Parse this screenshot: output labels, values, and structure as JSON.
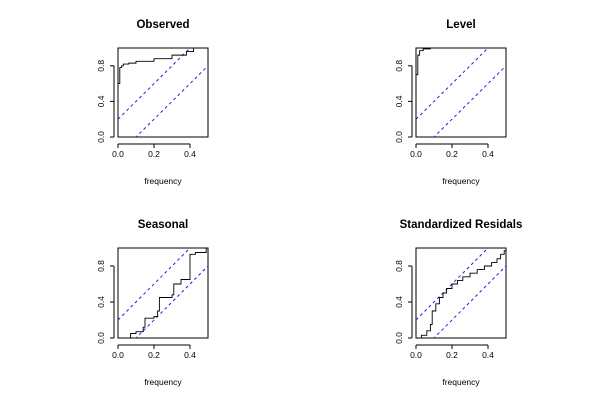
{
  "chart_data": [
    {
      "type": "line",
      "title": "Observed",
      "xlabel": "frequency",
      "ylabel": "",
      "xlim": [
        0,
        0.5
      ],
      "ylim": [
        0,
        1
      ],
      "xticks": [
        "0.0",
        "0.2",
        "0.4"
      ],
      "yticks": [
        "0.0",
        "0.4",
        "0.8"
      ],
      "series": [
        {
          "values": [
            [
              0,
              0
            ],
            [
              0,
              0.6
            ],
            [
              0.01,
              0.6
            ],
            [
              0.01,
              0.78
            ],
            [
              0.02,
              0.78
            ],
            [
              0.02,
              0.8
            ],
            [
              0.03,
              0.8
            ],
            [
              0.03,
              0.82
            ],
            [
              0.06,
              0.82
            ],
            [
              0.06,
              0.83
            ],
            [
              0.1,
              0.83
            ],
            [
              0.1,
              0.85
            ],
            [
              0.2,
              0.85
            ],
            [
              0.2,
              0.88
            ],
            [
              0.3,
              0.88
            ],
            [
              0.3,
              0.92
            ],
            [
              0.38,
              0.92
            ],
            [
              0.38,
              0.96
            ],
            [
              0.42,
              0.96
            ],
            [
              0.42,
              1
            ],
            [
              0.5,
              1
            ]
          ]
        }
      ],
      "band_offset": 0.2
    },
    {
      "type": "line",
      "title": "Level",
      "xlabel": "frequency",
      "ylabel": "",
      "xlim": [
        0,
        0.5
      ],
      "ylim": [
        0,
        1
      ],
      "xticks": [
        "0.0",
        "0.2",
        "0.4"
      ],
      "yticks": [
        "0.0",
        "0.4",
        "0.8"
      ],
      "series": [
        {
          "values": [
            [
              0,
              0
            ],
            [
              0,
              0.7
            ],
            [
              0.01,
              0.7
            ],
            [
              0.01,
              0.92
            ],
            [
              0.02,
              0.92
            ],
            [
              0.02,
              0.97
            ],
            [
              0.04,
              0.97
            ],
            [
              0.04,
              0.99
            ],
            [
              0.08,
              0.99
            ],
            [
              0.08,
              1
            ],
            [
              0.5,
              1
            ]
          ]
        }
      ],
      "band_offset": 0.2
    },
    {
      "type": "line",
      "title": "Seasonal",
      "xlabel": "frequency",
      "ylabel": "",
      "xlim": [
        0,
        0.5
      ],
      "ylim": [
        0,
        1
      ],
      "xticks": [
        "0.0",
        "0.2",
        "0.4"
      ],
      "yticks": [
        "0.0",
        "0.4",
        "0.8"
      ],
      "series": [
        {
          "values": [
            [
              0,
              0
            ],
            [
              0.07,
              0
            ],
            [
              0.07,
              0.05
            ],
            [
              0.1,
              0.05
            ],
            [
              0.1,
              0.07
            ],
            [
              0.14,
              0.07
            ],
            [
              0.14,
              0.12
            ],
            [
              0.15,
              0.12
            ],
            [
              0.15,
              0.22
            ],
            [
              0.2,
              0.22
            ],
            [
              0.2,
              0.24
            ],
            [
              0.22,
              0.24
            ],
            [
              0.22,
              0.3
            ],
            [
              0.23,
              0.3
            ],
            [
              0.23,
              0.45
            ],
            [
              0.3,
              0.45
            ],
            [
              0.3,
              0.48
            ],
            [
              0.31,
              0.48
            ],
            [
              0.31,
              0.6
            ],
            [
              0.35,
              0.6
            ],
            [
              0.35,
              0.65
            ],
            [
              0.4,
              0.65
            ],
            [
              0.4,
              0.93
            ],
            [
              0.43,
              0.93
            ],
            [
              0.43,
              0.95
            ],
            [
              0.49,
              0.95
            ],
            [
              0.49,
              1
            ],
            [
              0.5,
              1
            ]
          ]
        }
      ],
      "band_offset": 0.2
    },
    {
      "type": "line",
      "title": "Standardized Residals",
      "xlabel": "frequency",
      "ylabel": "",
      "xlim": [
        0,
        0.5
      ],
      "ylim": [
        0,
        1
      ],
      "xticks": [
        "0.0",
        "0.2",
        "0.4"
      ],
      "yticks": [
        "0.0",
        "0.4",
        "0.8"
      ],
      "series": [
        {
          "values": [
            [
              0,
              0
            ],
            [
              0.03,
              0
            ],
            [
              0.03,
              0.03
            ],
            [
              0.06,
              0.03
            ],
            [
              0.06,
              0.08
            ],
            [
              0.08,
              0.08
            ],
            [
              0.08,
              0.15
            ],
            [
              0.09,
              0.15
            ],
            [
              0.09,
              0.3
            ],
            [
              0.11,
              0.3
            ],
            [
              0.11,
              0.38
            ],
            [
              0.13,
              0.38
            ],
            [
              0.13,
              0.45
            ],
            [
              0.15,
              0.45
            ],
            [
              0.15,
              0.5
            ],
            [
              0.17,
              0.5
            ],
            [
              0.17,
              0.55
            ],
            [
              0.2,
              0.55
            ],
            [
              0.2,
              0.6
            ],
            [
              0.23,
              0.6
            ],
            [
              0.23,
              0.64
            ],
            [
              0.26,
              0.64
            ],
            [
              0.26,
              0.68
            ],
            [
              0.3,
              0.68
            ],
            [
              0.3,
              0.72
            ],
            [
              0.34,
              0.72
            ],
            [
              0.34,
              0.76
            ],
            [
              0.38,
              0.76
            ],
            [
              0.38,
              0.8
            ],
            [
              0.42,
              0.8
            ],
            [
              0.42,
              0.84
            ],
            [
              0.45,
              0.84
            ],
            [
              0.45,
              0.88
            ],
            [
              0.47,
              0.88
            ],
            [
              0.47,
              0.93
            ],
            [
              0.49,
              0.93
            ],
            [
              0.49,
              0.97
            ],
            [
              0.5,
              0.97
            ],
            [
              0.5,
              1
            ]
          ]
        }
      ],
      "band_offset": 0.2
    }
  ]
}
